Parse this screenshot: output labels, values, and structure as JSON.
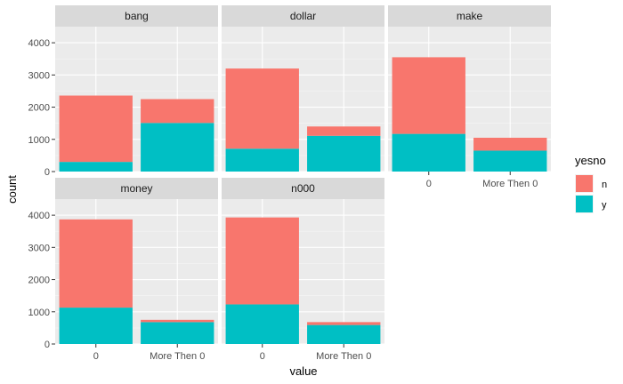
{
  "chart_data": {
    "type": "bar",
    "stacked": true,
    "faceted": true,
    "xlabel": "value",
    "ylabel": "count",
    "categories": [
      "0",
      "More Then 0"
    ],
    "ylim": [
      0,
      4500
    ],
    "yticks": [
      0,
      1000,
      2000,
      3000,
      4000
    ],
    "grid": true,
    "legend": {
      "title": "yesno",
      "placement": "right",
      "entries": [
        {
          "key": "n",
          "label": "n",
          "color": "#F8766D"
        },
        {
          "key": "y",
          "label": "y",
          "color": "#00BFC4"
        }
      ]
    },
    "panels": [
      {
        "title": "bang",
        "n": [
          2060,
          740
        ],
        "y": [
          300,
          1510
        ]
      },
      {
        "title": "dollar",
        "n": [
          2490,
          290
        ],
        "y": [
          710,
          1110
        ]
      },
      {
        "title": "make",
        "n": [
          2380,
          400
        ],
        "y": [
          1170,
          650
        ]
      },
      {
        "title": "money",
        "n": [
          2740,
          70
        ],
        "y": [
          1130,
          680
        ]
      },
      {
        "title": "n000",
        "n": [
          2700,
          90
        ],
        "y": [
          1230,
          590
        ]
      }
    ]
  }
}
